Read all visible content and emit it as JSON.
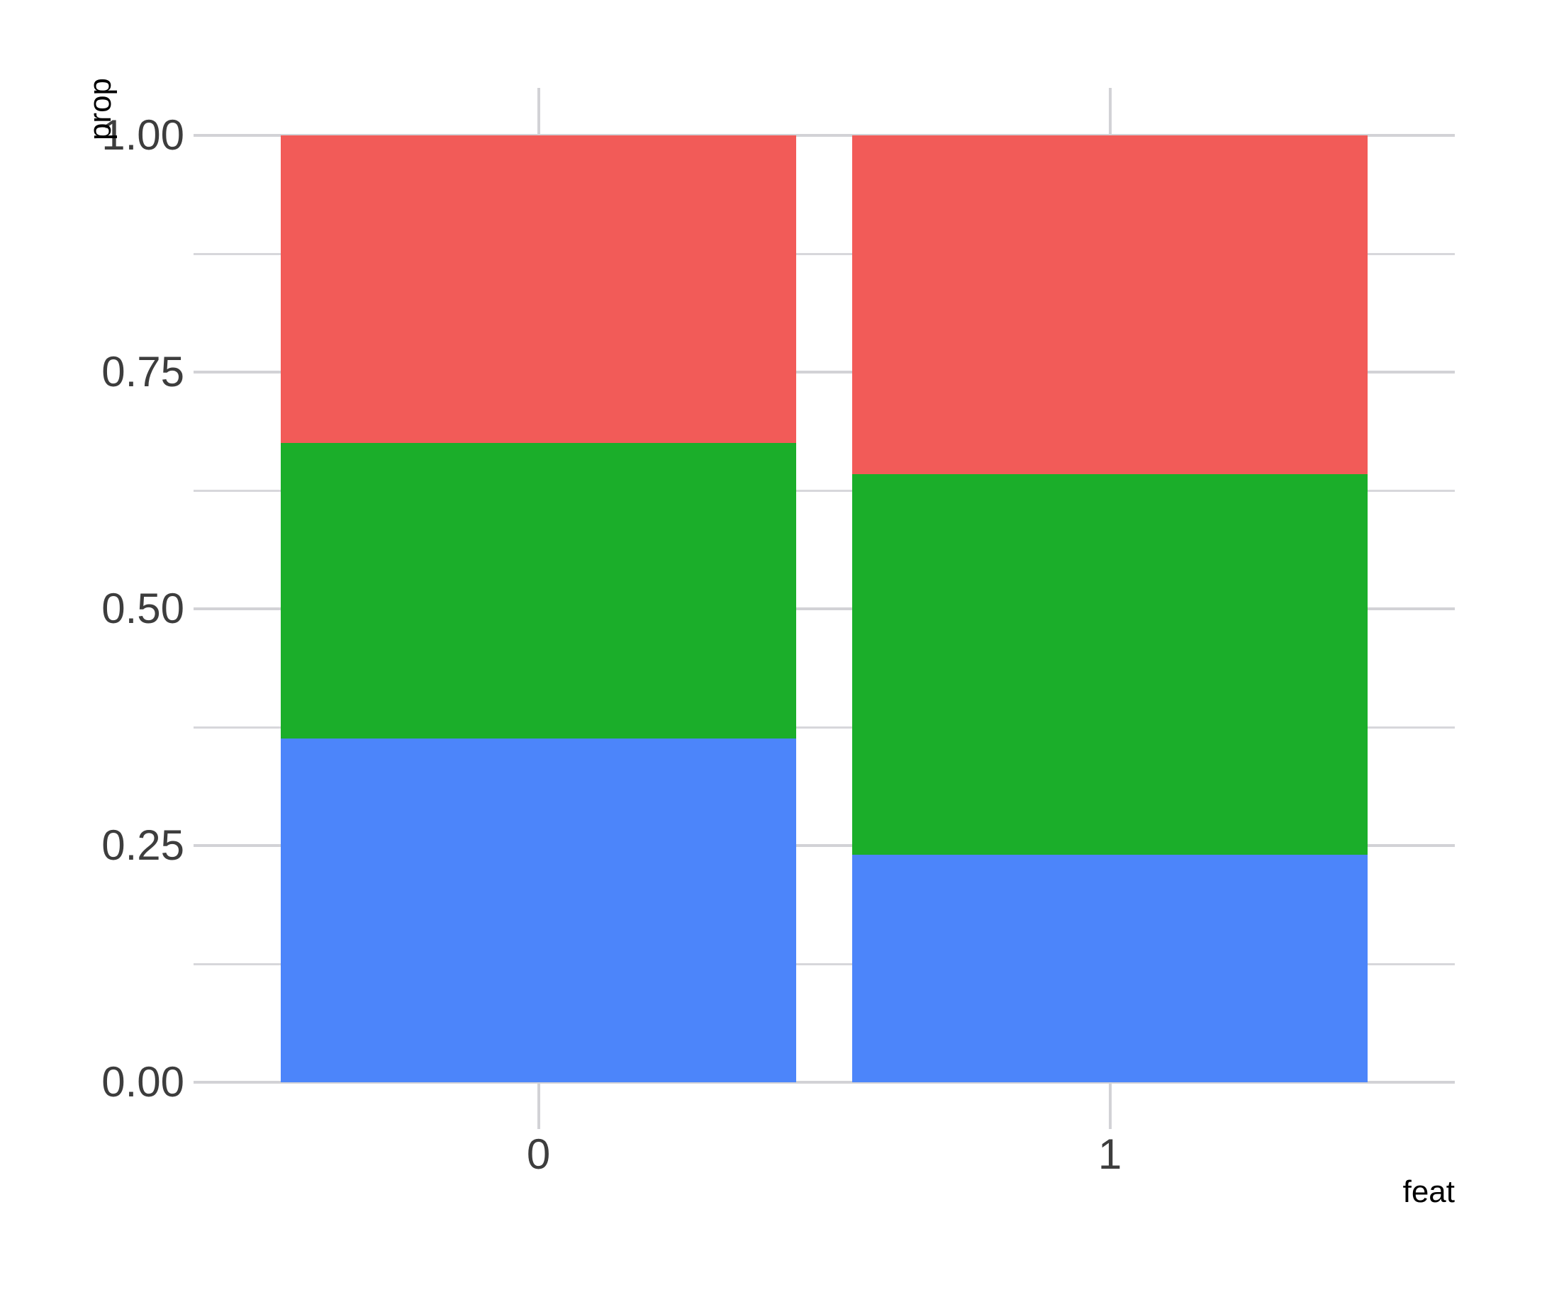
{
  "chart_data": {
    "type": "bar",
    "subtype": "stacked-normalized",
    "title": "",
    "xlabel": "feat",
    "ylabel": "prop",
    "categories": [
      "0",
      "1"
    ],
    "series": [
      {
        "name": "blue",
        "color": "#4C85FA",
        "values": [
          0.363,
          0.24
        ]
      },
      {
        "name": "green",
        "color": "#1BAE2A",
        "values": [
          0.312,
          0.402
        ]
      },
      {
        "name": "red",
        "color": "#F25B58",
        "values": [
          0.325,
          0.358
        ]
      }
    ],
    "ylim": [
      0,
      1
    ],
    "y_ticks": [
      {
        "value": 0.0,
        "label": "0.00"
      },
      {
        "value": 0.25,
        "label": "0.25"
      },
      {
        "value": 0.5,
        "label": "0.50"
      },
      {
        "value": 0.75,
        "label": "0.75"
      },
      {
        "value": 1.0,
        "label": "1.00"
      }
    ],
    "y_minor_ticks": [
      0.125,
      0.375,
      0.625,
      0.875
    ],
    "x_ticks": [
      "0",
      "1"
    ],
    "grid": "horizontal major+minor; vertical lines at category centers",
    "legend": "none",
    "colors": {
      "background": "#FFFFFF",
      "grid_major": "#D2D2D6",
      "grid_minor": "#D7D7DB",
      "tick_label": "#3D3D3D",
      "axis_title": "#000000"
    }
  }
}
